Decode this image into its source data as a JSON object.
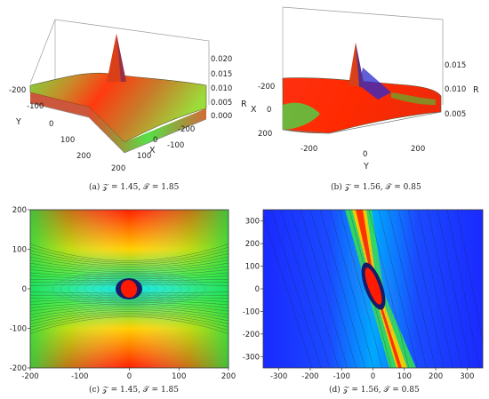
{
  "chart_data": [
    {
      "panel": "a",
      "type": "surface",
      "caption": "(a) 𝒵 = 1.45, 𝒯 = 1.85",
      "zlabel": "R",
      "xlabel": "X",
      "ylabel": "Y",
      "z_ticks": [
        "0.020",
        "0.015",
        "0.010",
        "0.005",
        "0.000"
      ],
      "x_ticks": [
        "-200",
        "-100",
        "0",
        "100",
        "200"
      ],
      "y_ticks": [
        "-200",
        "-100",
        "0",
        "100",
        "200"
      ],
      "xlim": [
        -200,
        200
      ],
      "ylim": [
        -200,
        200
      ],
      "zlim": [
        0,
        0.02
      ],
      "peak": 0.02,
      "colors": {
        "low": "#ff2a00",
        "mid": "#55ff33",
        "high": "#cc1100"
      }
    },
    {
      "panel": "b",
      "type": "surface",
      "caption": "(b) 𝒵 = 1.56, 𝒯 = 0.85",
      "zlabel": "R",
      "xlabel": "X",
      "ylabel": "Y",
      "z_ticks": [
        "0.015",
        "0.010",
        "0.005"
      ],
      "x_ticks": [
        "-200",
        "0",
        "200"
      ],
      "y_ticks": [
        "-200",
        "0",
        "200"
      ],
      "xlim": [
        -300,
        300
      ],
      "ylim": [
        -300,
        300
      ],
      "zlim": [
        0.003,
        0.016
      ],
      "peak": 0.016,
      "colors": {
        "low": "#ff2200",
        "mid": "#44ee33",
        "high": "#2a2aff"
      }
    },
    {
      "panel": "c",
      "type": "contour",
      "caption": "(c) 𝒵 = 1.45, 𝒯 = 1.85",
      "x_ticks": [
        "-200",
        "-100",
        "0",
        "100",
        "200"
      ],
      "y_ticks": [
        "200",
        "100",
        "0",
        "-100",
        "-200"
      ],
      "xlim": [
        -200,
        200
      ],
      "ylim": [
        -200,
        200
      ],
      "colors": {
        "center": "#ff1a00",
        "ring": "#1a1a66",
        "low": "#00e6cc",
        "high": "#ff2a00"
      }
    },
    {
      "panel": "d",
      "type": "contour",
      "caption": "(d) 𝒵 = 1.56, 𝒯 = 0.85",
      "x_ticks": [
        "-300",
        "-200",
        "-100",
        "0",
        "100",
        "200",
        "300"
      ],
      "y_ticks": [
        "300",
        "200",
        "100",
        "0",
        "-100",
        "-200",
        "-300"
      ],
      "xlim": [
        -350,
        350
      ],
      "ylim": [
        -350,
        350
      ],
      "colors": {
        "center": "#ff1a00",
        "ring": "#1a1a66",
        "low": "#1a2aff",
        "high": "#ff2a00"
      }
    }
  ]
}
